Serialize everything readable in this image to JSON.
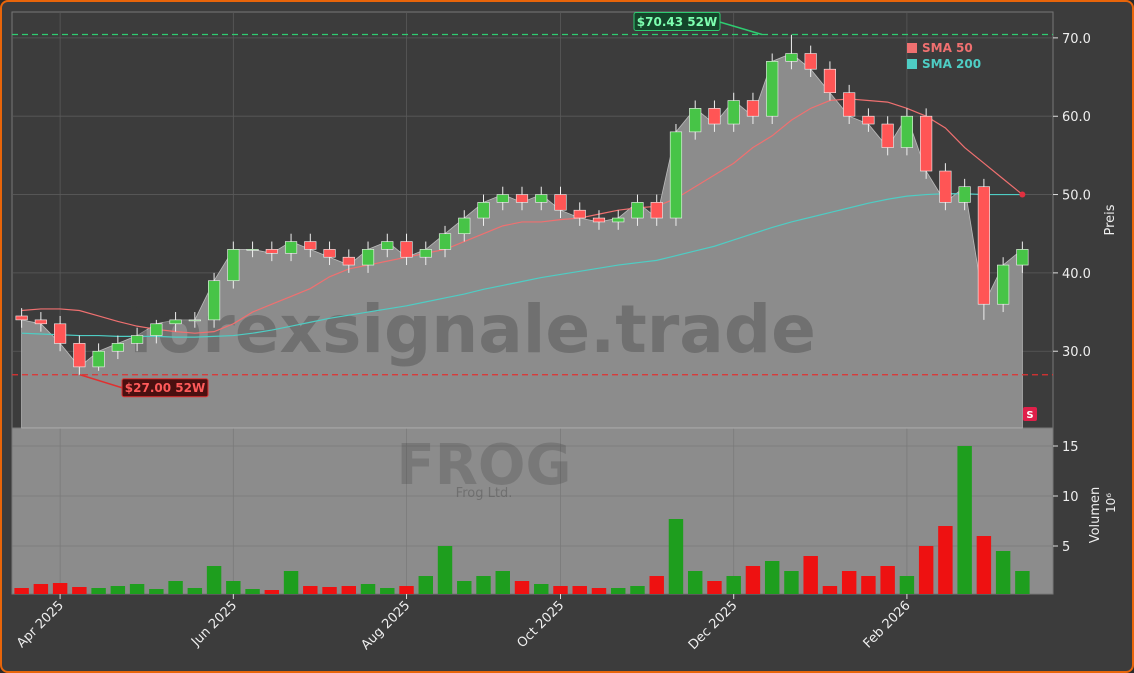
{
  "chart_data": [
    {
      "type": "candlestick",
      "categories": [
        null,
        null,
        "Apr 2025",
        null,
        null,
        null,
        null,
        null,
        null,
        null,
        null,
        "Jun 2025",
        null,
        null,
        null,
        null,
        null,
        null,
        null,
        null,
        "Aug 2025",
        null,
        null,
        null,
        null,
        null,
        null,
        null,
        "Oct 2025",
        null,
        null,
        null,
        null,
        null,
        null,
        null,
        null,
        "Dec 2025",
        null,
        null,
        null,
        null,
        null,
        null,
        null,
        null,
        "Feb 2026",
        null,
        null,
        null,
        null,
        null,
        null
      ],
      "open": [
        34.5,
        34,
        33.5,
        31,
        28,
        30,
        31,
        32,
        33.5,
        34,
        34,
        39,
        43,
        43,
        42.5,
        44,
        43,
        42,
        41,
        43,
        44,
        42,
        43,
        45,
        47,
        49,
        50,
        49,
        50,
        48,
        47,
        46.5,
        47,
        49,
        47,
        58,
        61,
        59,
        62,
        60,
        67,
        68,
        66,
        63,
        60,
        59,
        56,
        60,
        53,
        49,
        51,
        36,
        41
      ],
      "high": [
        35.5,
        35,
        34.5,
        32,
        31,
        32,
        33,
        34,
        35,
        35,
        40,
        44,
        44,
        44,
        45,
        45,
        44,
        43,
        44,
        45,
        45,
        44,
        46,
        48,
        50,
        51,
        51,
        51,
        51,
        49,
        48,
        48,
        50,
        50,
        59,
        62,
        62,
        63,
        63,
        68,
        70.4,
        69,
        67,
        64,
        61,
        60,
        61,
        61,
        54,
        52,
        52,
        42,
        44
      ],
      "low": [
        33,
        32.5,
        30,
        27,
        27.5,
        29,
        30,
        31,
        32.5,
        33,
        33,
        38,
        42,
        41.5,
        41.5,
        42,
        41,
        40,
        40,
        42,
        41,
        41,
        42,
        44,
        46,
        48,
        48,
        48,
        47,
        46,
        45.5,
        45.5,
        46,
        46,
        46,
        57,
        58,
        58,
        59,
        59,
        66,
        65,
        62,
        59,
        58,
        55,
        55,
        52,
        48,
        48,
        34,
        35,
        40
      ],
      "close": [
        34,
        33.5,
        31,
        28,
        30,
        31,
        32,
        33.5,
        34,
        34,
        39,
        43,
        43,
        42.5,
        44,
        43,
        42,
        41,
        43,
        44,
        42,
        43,
        45,
        47,
        49,
        50,
        49,
        50,
        48,
        47,
        46.5,
        47,
        49,
        47,
        58,
        61,
        59,
        62,
        60,
        67,
        68,
        66,
        63,
        60,
        59,
        56,
        60,
        53,
        49,
        51,
        36,
        41,
        43
      ],
      "up_color": "#47c447",
      "down_color": "#ff5555",
      "area_color": "#8c8c8c",
      "series": [
        {
          "name": "SMA 50",
          "color": "#f07070",
          "values": [
            35.2,
            35.4,
            35.4,
            35.2,
            34.5,
            33.8,
            33.2,
            32.8,
            32.5,
            32.3,
            32.5,
            33.5,
            35,
            36,
            37,
            38,
            39.5,
            40.5,
            41,
            41.5,
            42,
            42.5,
            43,
            44,
            45,
            46,
            46.5,
            46.5,
            46.8,
            47,
            47.5,
            48,
            48.3,
            48.5,
            49.5,
            51,
            52.5,
            54,
            56,
            57.5,
            59.5,
            61,
            62,
            62.2,
            62,
            61.8,
            61,
            60,
            58.5,
            56,
            54,
            52,
            50
          ]
        },
        {
          "name": "SMA 200",
          "color": "#4ecdc4",
          "values": [
            32.3,
            32.2,
            32.1,
            32,
            32,
            31.9,
            31.9,
            31.9,
            31.8,
            31.8,
            31.9,
            32,
            32.3,
            32.7,
            33.2,
            33.7,
            34.2,
            34.6,
            35,
            35.4,
            35.8,
            36.3,
            36.8,
            37.3,
            37.9,
            38.4,
            38.9,
            39.4,
            39.8,
            40.2,
            40.6,
            41,
            41.3,
            41.6,
            42.2,
            42.8,
            43.4,
            44.2,
            45,
            45.8,
            46.5,
            47.1,
            47.7,
            48.3,
            48.9,
            49.4,
            49.8,
            50,
            50.1,
            50.1,
            50,
            50,
            50
          ]
        }
      ],
      "hlines": [
        {
          "value": 70.43,
          "label": "$70.43 52W",
          "color": "#2ecc71"
        },
        {
          "value": 27.0,
          "label": "$27.00 52W",
          "color": "#e03030"
        }
      ],
      "ylim": [
        20.2,
        73.3
      ],
      "yticks": [
        {
          "value": 30,
          "label": "30.0"
        },
        {
          "value": 40,
          "label": "40.0"
        },
        {
          "value": 50,
          "label": "50.0"
        },
        {
          "value": 60,
          "label": "60.0"
        },
        {
          "value": 70,
          "label": "70.0"
        }
      ],
      "ylabel": "Preis",
      "legend": "upper right",
      "grid": true,
      "watermark": "forexsignale.trade",
      "signal": "S"
    },
    {
      "type": "bar",
      "values": [
        0.8,
        1.2,
        1.3,
        0.9,
        0.8,
        1.0,
        1.2,
        0.7,
        1.5,
        0.8,
        3.0,
        1.5,
        0.7,
        0.6,
        2.5,
        1.0,
        0.9,
        1.0,
        1.2,
        0.8,
        1.0,
        2.0,
        5.0,
        1.5,
        2.0,
        2.5,
        1.5,
        1.2,
        1.0,
        1.0,
        0.8,
        0.8,
        1.0,
        2.0,
        7.7,
        2.5,
        1.5,
        2.0,
        3.0,
        3.5,
        2.5,
        4.0,
        1.0,
        2.5,
        2.0,
        3.0,
        2.0,
        5.0,
        7.0,
        15.0,
        6.0,
        4.5,
        2.5
      ],
      "ylim": [
        0.2,
        16.8
      ],
      "yticks": [
        5,
        10,
        15
      ],
      "ylabel": "Volumen",
      "yunit": "10⁶",
      "grid": true,
      "watermark_title": "FROG",
      "watermark_subtitle": "Frog Ltd."
    }
  ]
}
